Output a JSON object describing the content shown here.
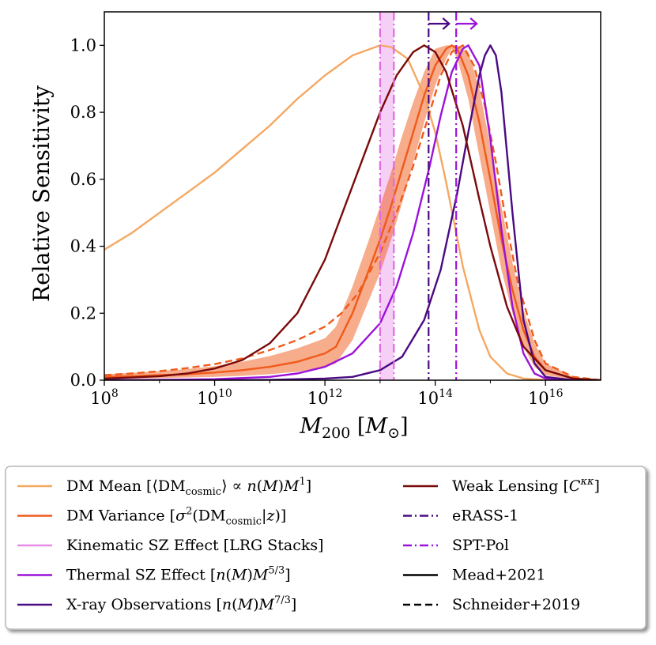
{
  "chart_data": {
    "type": "line",
    "xscale": "log",
    "xlim_log10": [
      8,
      17
    ],
    "ylim": [
      0,
      1.1
    ],
    "xlabel": {
      "main": "M",
      "sub": "200",
      "unit_open": " [",
      "unit_main": "M",
      "unit_sub": "⊙",
      "unit_close": "]"
    },
    "ylabel": "Relative Sensitivity",
    "xticks": [
      {
        "base": "10",
        "exp": "8",
        "log10": 8
      },
      {
        "base": "10",
        "exp": "10",
        "log10": 10
      },
      {
        "base": "10",
        "exp": "12",
        "log10": 12
      },
      {
        "base": "10",
        "exp": "14",
        "log10": 14
      },
      {
        "base": "10",
        "exp": "16",
        "log10": 16
      }
    ],
    "yticks": [
      {
        "label": "0.0",
        "value": 0.0
      },
      {
        "label": "0.2",
        "value": 0.2
      },
      {
        "label": "0.4",
        "value": 0.4
      },
      {
        "label": "0.6",
        "value": 0.6
      },
      {
        "label": "0.8",
        "value": 0.8
      },
      {
        "label": "1.0",
        "value": 1.0
      }
    ],
    "series": [
      {
        "name": "DM Mean",
        "color": "#f5a862",
        "style": "solid",
        "log10M": [
          8,
          8.5,
          9,
          9.5,
          10,
          10.5,
          11,
          11.5,
          12,
          12.5,
          13,
          13.2,
          13.5,
          13.8,
          14,
          14.2,
          14.5,
          14.8,
          15,
          15.3,
          15.6,
          16,
          16.5,
          17
        ],
        "y": [
          0.39,
          0.44,
          0.5,
          0.56,
          0.62,
          0.69,
          0.76,
          0.84,
          0.91,
          0.97,
          1.0,
          0.995,
          0.96,
          0.85,
          0.74,
          0.59,
          0.34,
          0.15,
          0.07,
          0.02,
          0.005,
          0.001,
          0,
          0
        ]
      },
      {
        "name": "DM Variance (Mead+2021)",
        "color": "#f05a1a",
        "style": "solid",
        "log10M": [
          8,
          8.5,
          9,
          9.5,
          10,
          10.5,
          11,
          11.5,
          12,
          12.2,
          12.5,
          12.8,
          13,
          13.2,
          13.4,
          13.6,
          13.8,
          14,
          14.2,
          14.3,
          14.4,
          14.6,
          14.8,
          15,
          15.2,
          15.4,
          15.6,
          15.8,
          16,
          16.5,
          17
        ],
        "y": [
          0.01,
          0.012,
          0.015,
          0.018,
          0.023,
          0.03,
          0.04,
          0.055,
          0.08,
          0.1,
          0.2,
          0.33,
          0.42,
          0.52,
          0.63,
          0.74,
          0.85,
          0.94,
          0.99,
          1.0,
          0.99,
          0.91,
          0.77,
          0.6,
          0.42,
          0.27,
          0.15,
          0.07,
          0.03,
          0.005,
          0
        ]
      },
      {
        "name": "DM Variance band upper",
        "color": "#f05a1a",
        "style": "band-upper",
        "log10M": [
          8,
          8.5,
          9,
          9.5,
          10,
          10.5,
          11,
          11.5,
          12,
          12.2,
          12.5,
          12.8,
          13,
          13.2,
          13.4,
          13.6,
          13.8,
          14,
          14.2,
          14.3,
          14.4,
          14.6,
          14.8,
          15,
          15.2,
          15.4,
          15.6,
          15.8,
          16,
          16.5,
          17
        ],
        "y": [
          0.018,
          0.022,
          0.027,
          0.033,
          0.042,
          0.055,
          0.072,
          0.095,
          0.125,
          0.16,
          0.28,
          0.42,
          0.52,
          0.62,
          0.73,
          0.83,
          0.92,
          0.99,
          1.0,
          1.0,
          1.0,
          0.98,
          0.87,
          0.7,
          0.52,
          0.35,
          0.21,
          0.11,
          0.05,
          0.01,
          0.001
        ]
      },
      {
        "name": "DM Variance band lower",
        "color": "#f05a1a",
        "style": "band-lower",
        "log10M": [
          8,
          8.5,
          9,
          9.5,
          10,
          10.5,
          11,
          11.5,
          12,
          12.2,
          12.5,
          12.8,
          13,
          13.2,
          13.4,
          13.6,
          13.8,
          14,
          14.2,
          14.3,
          14.4,
          14.6,
          14.8,
          15,
          15.2,
          15.4,
          15.6,
          15.8,
          16,
          16.5,
          17
        ],
        "y": [
          0.004,
          0.005,
          0.006,
          0.008,
          0.01,
          0.013,
          0.018,
          0.025,
          0.038,
          0.05,
          0.12,
          0.24,
          0.32,
          0.42,
          0.53,
          0.65,
          0.77,
          0.88,
          0.96,
          0.99,
          0.96,
          0.84,
          0.67,
          0.5,
          0.33,
          0.2,
          0.1,
          0.04,
          0.015,
          0.002,
          0
        ]
      },
      {
        "name": "DM Variance (Schneider+2019)",
        "color": "#f05a1a",
        "style": "dashed",
        "log10M": [
          8,
          8.5,
          9,
          9.5,
          10,
          10.5,
          11,
          11.5,
          12,
          12.3,
          12.6,
          13,
          13.3,
          13.6,
          13.9,
          14.1,
          14.3,
          14.5,
          14.7,
          14.9,
          15.1,
          15.3,
          15.5,
          15.8,
          16,
          16.5,
          17
        ],
        "y": [
          0.015,
          0.02,
          0.027,
          0.036,
          0.048,
          0.065,
          0.09,
          0.12,
          0.16,
          0.2,
          0.26,
          0.38,
          0.5,
          0.64,
          0.8,
          0.91,
          0.98,
          1.0,
          0.94,
          0.82,
          0.65,
          0.46,
          0.29,
          0.12,
          0.05,
          0.01,
          0
        ]
      },
      {
        "name": "Thermal SZ Effect",
        "color": "#9b12d9",
        "style": "solid",
        "log10M": [
          8,
          9,
          10,
          11,
          11.5,
          12,
          12.5,
          13,
          13.3,
          13.6,
          13.9,
          14.1,
          14.3,
          14.5,
          14.6,
          14.8,
          15,
          15.2,
          15.4,
          15.6,
          15.8,
          16,
          16.5,
          17
        ],
        "y": [
          0,
          0.001,
          0.003,
          0.01,
          0.02,
          0.04,
          0.08,
          0.17,
          0.28,
          0.44,
          0.64,
          0.79,
          0.92,
          0.99,
          1.0,
          0.94,
          0.72,
          0.45,
          0.22,
          0.08,
          0.02,
          0.005,
          0,
          0
        ]
      },
      {
        "name": "X-ray Observations",
        "color": "#4a0a82",
        "style": "solid",
        "log10M": [
          8,
          9,
          10,
          11,
          12,
          12.5,
          13,
          13.4,
          13.8,
          14.1,
          14.4,
          14.6,
          14.8,
          14.9,
          15,
          15.1,
          15.2,
          15.4,
          15.6,
          15.8,
          16,
          16.5,
          17
        ],
        "y": [
          0,
          0,
          0,
          0.001,
          0.005,
          0.01,
          0.03,
          0.07,
          0.18,
          0.33,
          0.56,
          0.74,
          0.91,
          0.97,
          1.0,
          0.97,
          0.86,
          0.5,
          0.18,
          0.05,
          0.01,
          0,
          0
        ]
      },
      {
        "name": "Weak Lensing",
        "color": "#7a0a0a",
        "style": "solid",
        "log10M": [
          8,
          8.5,
          9,
          9.5,
          10,
          10.5,
          11,
          11.5,
          12,
          12.5,
          13,
          13.3,
          13.6,
          13.8,
          14,
          14.2,
          14.5,
          14.8,
          15,
          15.3,
          15.6,
          16,
          16.5,
          17
        ],
        "y": [
          0.005,
          0.008,
          0.012,
          0.02,
          0.035,
          0.06,
          0.11,
          0.2,
          0.36,
          0.58,
          0.8,
          0.91,
          0.98,
          1.0,
          0.98,
          0.92,
          0.76,
          0.54,
          0.4,
          0.22,
          0.1,
          0.03,
          0.005,
          0
        ]
      }
    ],
    "vertical_lines": [
      {
        "name": "Kinematic SZ band",
        "log10M_min": 13.0,
        "log10M_max": 13.25,
        "color": "#e06be0",
        "style": "band"
      },
      {
        "name": "Kinematic SZ",
        "log10M": 13.0,
        "color": "#e06be0",
        "style": "dashdot"
      },
      {
        "name": "Kinematic SZ",
        "log10M": 13.25,
        "color": "#e06be0",
        "style": "dashdot"
      },
      {
        "name": "eRASS-1",
        "log10M": 13.88,
        "color": "#4a0a82",
        "style": "dashdot",
        "arrow": "right"
      },
      {
        "name": "SPT-Pol",
        "log10M": 14.38,
        "color": "#9b12d9",
        "style": "dashdot",
        "arrow": "right"
      }
    ]
  },
  "legend": {
    "left": [
      {
        "kind": "dm-mean",
        "color": "#f5a862",
        "style": "solid",
        "text": {
          "a": "DM Mean [⟨DM",
          "sub": "cosmic",
          "b": "⟩ ∝ ",
          "c": "n",
          "d": "(",
          "e": "M",
          "f": ")",
          "g": "M",
          "sup": "1",
          "h": "]"
        }
      },
      {
        "kind": "dm-variance",
        "color": "#f05a1a",
        "style": "solid",
        "text": {
          "a": "DM Variance [",
          "c": "σ",
          "sup": "2",
          "b": "(DM",
          "sub": "cosmic",
          "d": "|",
          "e": "z",
          "h": ")]"
        }
      },
      {
        "kind": "ksz",
        "color": "#e88be8",
        "style": "solid",
        "text": {
          "a": "Kinematic SZ Effect [LRG Stacks]"
        }
      },
      {
        "kind": "tsz",
        "color": "#9b12d9",
        "style": "solid",
        "text": {
          "a": "Thermal SZ Effect [",
          "c": "n",
          "d": "(",
          "e": "M",
          "f": ")",
          "g": "M",
          "sup": "5/3",
          "h": "]"
        }
      },
      {
        "kind": "xray",
        "color": "#4a0a82",
        "style": "solid",
        "text": {
          "a": "X-ray Observations [",
          "c": "n",
          "d": "(",
          "e": "M",
          "f": ")",
          "g": "M",
          "sup": "7/3",
          "h": "]"
        }
      }
    ],
    "right": [
      {
        "kind": "wl",
        "color": "#7a0a0a",
        "style": "solid",
        "text": {
          "a": "Weak Lensing [",
          "c": "C",
          "sup": "κκ",
          "h": "]"
        }
      },
      {
        "kind": "erass",
        "color": "#4a0a82",
        "style": "dashdot",
        "text": {
          "a": "eRASS-1"
        }
      },
      {
        "kind": "spt",
        "color": "#9b12d9",
        "style": "dashdot",
        "text": {
          "a": "SPT-Pol"
        }
      },
      {
        "kind": "mead",
        "color": "#000000",
        "style": "solid",
        "text": {
          "a": "Mead+2021"
        }
      },
      {
        "kind": "schneider",
        "color": "#000000",
        "style": "dashed",
        "text": {
          "a": "Schneider+2019"
        }
      }
    ]
  }
}
